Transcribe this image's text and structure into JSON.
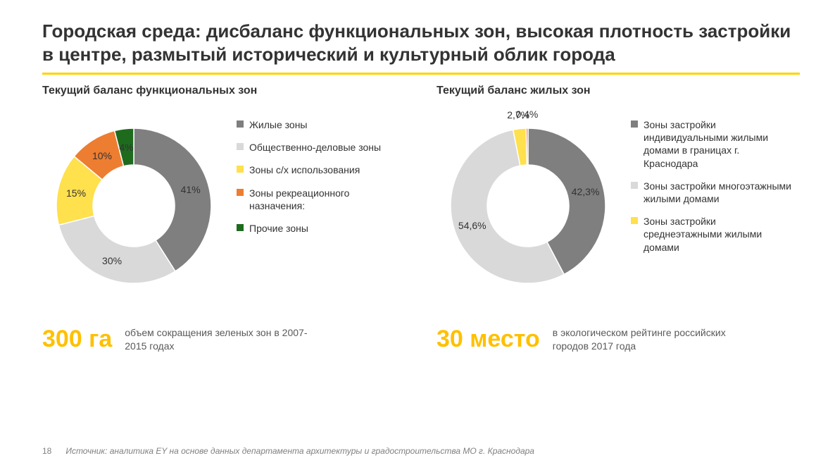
{
  "title": "Городская среда: дисбаланс функциональных зон, высокая плотность застройки в центре, размытый исторический и культурный облик города",
  "accent_color": "#ffd400",
  "background_color": "#ffffff",
  "text_color": "#333333",
  "chart_left": {
    "subtitle": "Текущий баланс функциональных зон",
    "type": "donut",
    "inner_radius": 58,
    "outer_radius": 110,
    "start_angle_deg": 90,
    "direction": "clockwise",
    "slices": [
      {
        "label": "Жилые зоны",
        "value": 41,
        "display": "41%",
        "color": "#7f7f7f"
      },
      {
        "label": "Общественно-деловые зоны",
        "value": 30,
        "display": "30%",
        "color": "#d9d9d9"
      },
      {
        "label": "Зоны с/х использования",
        "value": 15,
        "display": "15%",
        "color": "#ffe04d"
      },
      {
        "label": "Зоны рекреационного назначения:",
        "value": 10,
        "display": "10%",
        "color": "#ed7d31"
      },
      {
        "label": "Прочие зоны",
        "value": 4,
        "display": "4%",
        "color": "#1e6b1e"
      }
    ],
    "label_fontsize": 14,
    "legend_fontsize": 14
  },
  "chart_right": {
    "subtitle": "Текущий баланс жилых зон",
    "type": "donut",
    "inner_radius": 58,
    "outer_radius": 110,
    "start_angle_deg": 90,
    "direction": "clockwise",
    "slices": [
      {
        "label": "Зоны застройки индивидуальными жилыми домами в границах г. Краснодара",
        "value": 42.3,
        "display": "42,3%",
        "color": "#7f7f7f"
      },
      {
        "label": "Зоны застройки многоэтажными жилыми домами",
        "value": 54.6,
        "display": "54,6%",
        "color": "#d9d9d9"
      },
      {
        "label": "Зоны застройки среднеэтажными жилыми домами",
        "value": 2.7,
        "display": "2,7%",
        "color": "#ffe04d"
      },
      {
        "label": "",
        "value": 0.4,
        "display": "0,4%",
        "color": "#ed7d31"
      }
    ],
    "label_fontsize": 14,
    "legend_fontsize": 14
  },
  "stat_left": {
    "number": "300 га",
    "desc": "объем сокращения зеленых зон в 2007-2015 годах",
    "number_color": "#ffc000",
    "number_fontsize": 34
  },
  "stat_right": {
    "number": "30 место",
    "desc": "в экологическом рейтинге российских городов 2017 года",
    "number_color": "#ffc000",
    "number_fontsize": 34
  },
  "footer": {
    "page": "18",
    "source": "Источник: аналитика EY на основе данных департамента архитектуры и градостроительства МО г. Краснодара"
  }
}
